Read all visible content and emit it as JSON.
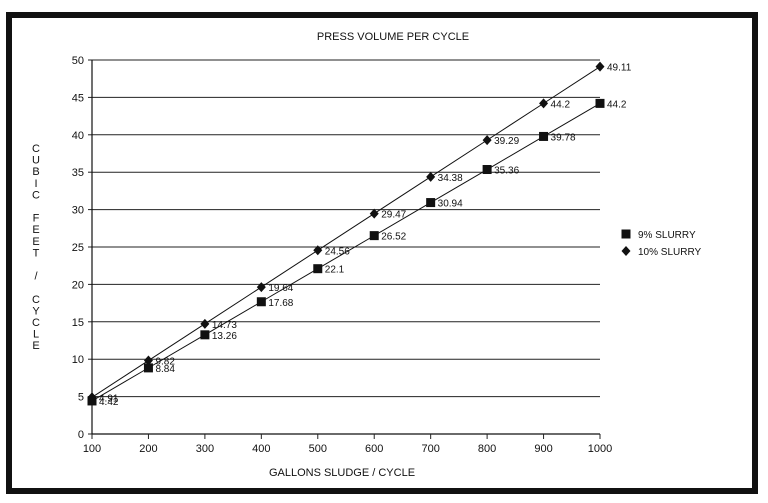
{
  "chart_data": {
    "type": "line",
    "title": "PRESS VOLUME PER CYCLE",
    "xlabel": "GALLONS SLUDGE / CYCLE",
    "ylabel": "CUBIC FEET / CYCLE",
    "ylabel_chars": [
      "C",
      "U",
      "B",
      "I",
      "C",
      "",
      "F",
      "E",
      "E",
      "T",
      "",
      "/",
      "",
      "C",
      "Y",
      "C",
      "L",
      "E"
    ],
    "xlim": [
      100,
      1000
    ],
    "ylim": [
      0,
      50
    ],
    "x_ticks": [
      "100",
      "200",
      "300",
      "400",
      "500",
      "600",
      "700",
      "800",
      "900",
      "1000"
    ],
    "y_ticks": [
      "0",
      "5",
      "10",
      "15",
      "20",
      "25",
      "30",
      "35",
      "40",
      "45",
      "50"
    ],
    "grid": "horizontal",
    "legend_position": "right",
    "x": [
      100,
      200,
      300,
      400,
      500,
      600,
      700,
      800,
      900,
      1000
    ],
    "series": [
      {
        "name": "9% SLURRY",
        "marker": "square",
        "values": [
          4.42,
          8.84,
          13.26,
          17.68,
          22.1,
          26.52,
          30.94,
          35.36,
          39.78,
          44.2
        ],
        "labels": [
          "4.42",
          "8.84",
          "13.26",
          "17.68",
          "22.1",
          "26.52",
          "30.94",
          "35.36",
          "39.78",
          "44.2"
        ]
      },
      {
        "name": "10% SLURRY",
        "marker": "diamond",
        "values": [
          4.91,
          9.82,
          14.73,
          19.64,
          24.56,
          29.47,
          34.38,
          39.29,
          44.2,
          49.11
        ],
        "labels": [
          "4.91",
          "9.82",
          "14.73",
          "19.64",
          "24.56",
          "29.47",
          "34.38",
          "39.29",
          "44.2",
          "49.11"
        ]
      }
    ]
  }
}
